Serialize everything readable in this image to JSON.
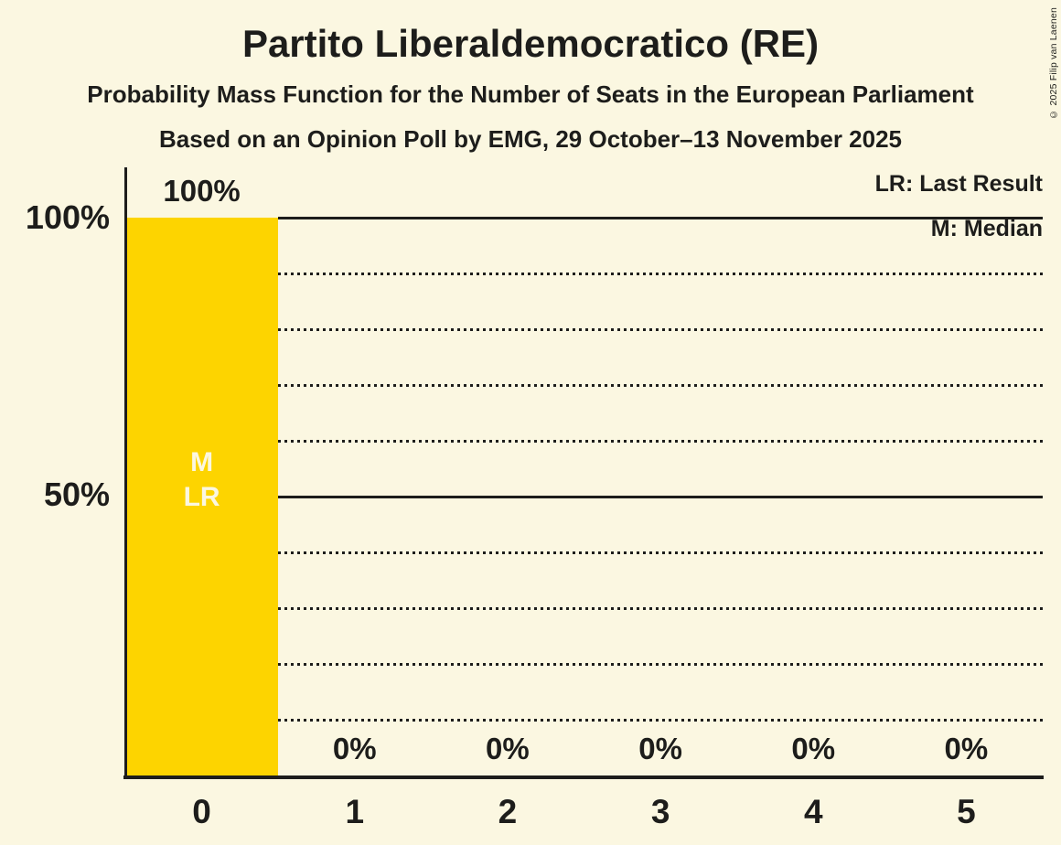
{
  "title": "Partito Liberaldemocratico (RE)",
  "subtitles": [
    "Probability Mass Function for the Number of Seats in the European Parliament",
    "Based on an Opinion Poll by EMG, 29 October–13 November 2025"
  ],
  "copyright": "© 2025 Filip van Laenen",
  "legend": {
    "last_result": "LR: Last Result",
    "median": "M: Median"
  },
  "y_axis": {
    "label_100": "100%",
    "label_50": "50%"
  },
  "annotations": {
    "median_label": "M",
    "last_result_label": "LR"
  },
  "colors": {
    "background": "#FBF7E1",
    "bar": "#FDD400",
    "ink": "#1D1D1B",
    "bar_annotation_text": "#FBF7E1"
  },
  "chart_data": {
    "type": "bar",
    "title": "Partito Liberaldemocratico (RE)",
    "xlabel": "",
    "ylabel": "",
    "categories": [
      "0",
      "1",
      "2",
      "3",
      "4",
      "5"
    ],
    "values": [
      100,
      0,
      0,
      0,
      0,
      0
    ],
    "value_labels": [
      "100%",
      "0%",
      "0%",
      "0%",
      "0%",
      "0%"
    ],
    "ylim": [
      0,
      100
    ],
    "y_tick_labels": [
      "100%",
      "50%"
    ],
    "y_solid_gridlines": [
      100,
      50
    ],
    "y_dotted_gridlines": [
      90,
      80,
      70,
      60,
      40,
      30,
      20,
      10
    ],
    "median_seats": 0,
    "last_result_seats": 0,
    "legend_position": "top-right",
    "grid": "dotted-horizontal"
  }
}
